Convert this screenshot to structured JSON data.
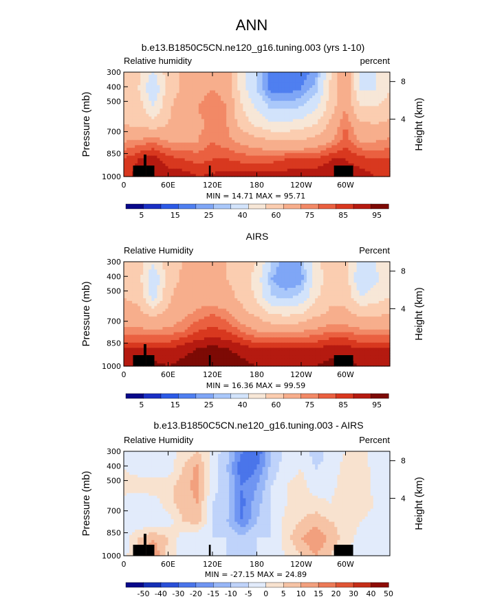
{
  "figure": {
    "title": "ANN"
  },
  "chart_data": [
    {
      "type": "heatmap",
      "title": "b.e13.B1850C5CN.ne120_g16.tuning.003 (yrs 1-10)",
      "left_label": "Relative humidity",
      "right_label": "percent",
      "ylabel": "Pressure (mb)",
      "y2label": "Height (km)",
      "yticks": [
        "300",
        "400",
        "500",
        "700",
        "850",
        "1000"
      ],
      "y2ticks": [
        "8",
        "4"
      ],
      "xticks": [
        "0",
        "60E",
        "120E",
        "180",
        "120W",
        "60W"
      ],
      "stats": "MIN =   14.71   MAX =   95.71",
      "colorbar_labels": [
        "5",
        "15",
        "25",
        "40",
        "60",
        "75",
        "85",
        "95"
      ],
      "field": [
        [
          55,
          52,
          38,
          55,
          62,
          65,
          70,
          68,
          45,
          30,
          15,
          15,
          17,
          22,
          50,
          70,
          35,
          40,
          48
        ],
        [
          55,
          50,
          30,
          55,
          62,
          66,
          70,
          66,
          45,
          30,
          18,
          18,
          20,
          28,
          52,
          68,
          40,
          40,
          50
        ],
        [
          58,
          55,
          40,
          58,
          65,
          70,
          75,
          70,
          50,
          38,
          28,
          28,
          30,
          38,
          55,
          70,
          50,
          50,
          55
        ],
        [
          60,
          58,
          55,
          60,
          65,
          68,
          72,
          70,
          55,
          48,
          42,
          42,
          45,
          50,
          62,
          75,
          62,
          60,
          62
        ],
        [
          70,
          72,
          75,
          70,
          70,
          70,
          75,
          72,
          68,
          65,
          62,
          62,
          62,
          65,
          70,
          78,
          70,
          70,
          72
        ],
        [
          80,
          85,
          88,
          82,
          80,
          78,
          80,
          80,
          78,
          78,
          78,
          80,
          80,
          80,
          85,
          85,
          82,
          80,
          80
        ],
        [
          82,
          88,
          90,
          88,
          88,
          85,
          86,
          88,
          88,
          88,
          88,
          88,
          88,
          90,
          90,
          88,
          88,
          85,
          85
        ]
      ]
    },
    {
      "type": "heatmap",
      "title": "AIRS",
      "left_label": "Relative Humidity",
      "right_label": "Percent",
      "ylabel": "Pressure (mb)",
      "y2label": "Height (km)",
      "yticks": [
        "300",
        "400",
        "500",
        "700",
        "850",
        "1000"
      ],
      "y2ticks": [
        "8",
        "4"
      ],
      "xticks": [
        "0",
        "60E",
        "120E",
        "180",
        "120W",
        "60W"
      ],
      "stats": "MIN =   16.36   MAX =   99.59",
      "colorbar_labels": [
        "5",
        "15",
        "25",
        "40",
        "60",
        "75",
        "85",
        "95"
      ],
      "field": [
        [
          55,
          55,
          42,
          55,
          60,
          62,
          62,
          60,
          58,
          50,
          30,
          20,
          25,
          48,
          55,
          55,
          35,
          40,
          48
        ],
        [
          58,
          55,
          30,
          55,
          62,
          62,
          62,
          60,
          58,
          45,
          25,
          20,
          22,
          45,
          55,
          55,
          30,
          38,
          45
        ],
        [
          60,
          58,
          35,
          58,
          65,
          65,
          65,
          62,
          58,
          48,
          30,
          28,
          32,
          48,
          58,
          58,
          40,
          45,
          50
        ],
        [
          62,
          62,
          58,
          62,
          68,
          72,
          75,
          72,
          62,
          58,
          50,
          48,
          50,
          58,
          62,
          62,
          58,
          58,
          60
        ],
        [
          72,
          72,
          72,
          72,
          75,
          80,
          82,
          80,
          75,
          70,
          68,
          68,
          70,
          72,
          75,
          75,
          72,
          72,
          72
        ],
        [
          85,
          85,
          85,
          85,
          88,
          90,
          92,
          90,
          88,
          85,
          85,
          85,
          85,
          85,
          88,
          88,
          85,
          85,
          85
        ],
        [
          90,
          90,
          92,
          90,
          92,
          95,
          96,
          95,
          92,
          90,
          88,
          88,
          88,
          90,
          92,
          92,
          90,
          90,
          90
        ]
      ]
    },
    {
      "type": "heatmap",
      "title": "b.e13.B1850C5CN.ne120_g16.tuning.003 - AIRS",
      "left_label": "Relative Humidity",
      "right_label": "Percent",
      "ylabel": "Pressure (mb)",
      "y2label": "Height (km)",
      "yticks": [
        "300",
        "400",
        "500",
        "700",
        "850",
        "1000"
      ],
      "y2ticks": [
        "8",
        "4"
      ],
      "xticks": [
        "0",
        "60E",
        "120E",
        "180",
        "120W",
        "60W"
      ],
      "stats": "MIN = -27.15   MAX =  24.89",
      "colorbar_labels": [
        "-50",
        "-40",
        "-30",
        "-20",
        "-15",
        "-10",
        "-5",
        "0",
        "5",
        "10",
        "15",
        "20",
        "30",
        "40",
        "50"
      ],
      "field": [
        [
          0,
          -3,
          -4,
          -3,
          2,
          5,
          -2,
          -8,
          -20,
          -25,
          -10,
          -3,
          -2,
          -8,
          -3,
          0,
          3,
          -3,
          -2
        ],
        [
          0,
          -3,
          -3,
          -3,
          5,
          12,
          -3,
          -10,
          -25,
          -20,
          -8,
          -2,
          0,
          -5,
          -3,
          2,
          3,
          -2,
          -2
        ],
        [
          2,
          4,
          3,
          3,
          8,
          12,
          -3,
          -8,
          -20,
          -15,
          -5,
          0,
          2,
          -3,
          -2,
          3,
          4,
          -2,
          0
        ],
        [
          -2,
          -5,
          -3,
          3,
          8,
          10,
          -5,
          -8,
          -22,
          -12,
          -5,
          0,
          3,
          2,
          0,
          5,
          3,
          0,
          0
        ],
        [
          -3,
          -5,
          -5,
          -3,
          5,
          8,
          -5,
          -10,
          -20,
          -10,
          -5,
          2,
          5,
          8,
          5,
          3,
          0,
          -2,
          -2
        ],
        [
          -3,
          5,
          10,
          5,
          -3,
          -5,
          -5,
          -5,
          -8,
          -5,
          -5,
          3,
          10,
          15,
          8,
          3,
          -2,
          -5,
          -5
        ],
        [
          -3,
          8,
          15,
          3,
          -2,
          -3,
          -3,
          -5,
          -8,
          -5,
          -3,
          0,
          5,
          10,
          5,
          0,
          -3,
          -5,
          -5
        ]
      ]
    }
  ]
}
